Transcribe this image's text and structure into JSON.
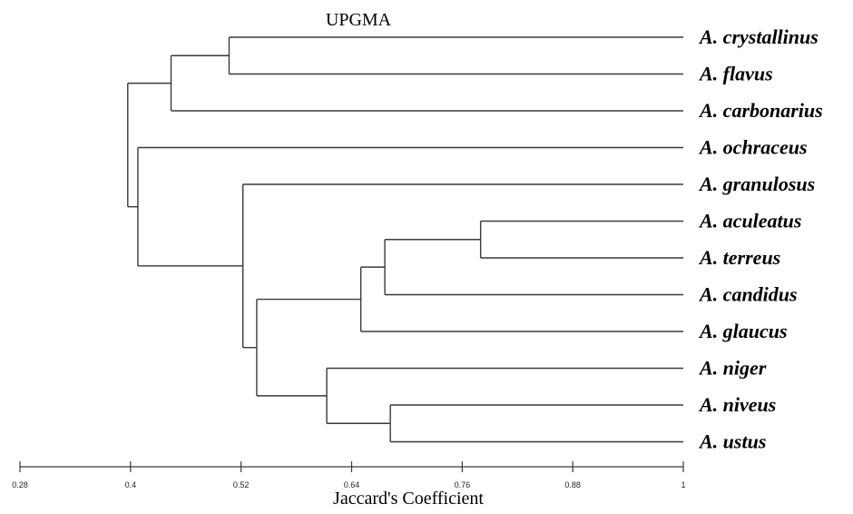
{
  "title": "UPGMA",
  "x_axis_label": "Jaccard's Coefficient",
  "axis": {
    "ticks": [
      0.28,
      0.4,
      0.52,
      0.64,
      0.76,
      0.88,
      1
    ],
    "tick_labels": [
      "0.28",
      "0.4",
      "0.52",
      "0.64",
      "0.76",
      "0.88",
      "1"
    ],
    "min": 0.28,
    "max": 1
  },
  "leaves": [
    "A. crystallinus",
    "A. flavus",
    "A. carbonarius",
    "A. ochraceus",
    "A. granulosus",
    "A. aculeatus",
    "A. terreus",
    "A. candidus",
    "A. glaucus",
    "A. niger",
    "A. niveus",
    "A. ustus"
  ],
  "tree": {
    "sim": 0.397,
    "children": [
      {
        "sim": 0.444,
        "children": [
          {
            "sim": 0.507,
            "children": [
              {
                "leaf": 0
              },
              {
                "leaf": 1
              }
            ]
          },
          {
            "leaf": 2
          }
        ]
      },
      {
        "sim": 0.408,
        "children": [
          {
            "leaf": 3
          },
          {
            "sim": 0.522,
            "children": [
              {
                "leaf": 4
              },
              {
                "sim": 0.537,
                "children": [
                  {
                    "sim": 0.65,
                    "children": [
                      {
                        "sim": 0.676,
                        "children": [
                          {
                            "sim": 0.78,
                            "children": [
                              {
                                "leaf": 5
                              },
                              {
                                "leaf": 6
                              }
                            ]
                          },
                          {
                            "leaf": 7
                          }
                        ]
                      },
                      {
                        "leaf": 8
                      }
                    ]
                  },
                  {
                    "sim": 0.613,
                    "children": [
                      {
                        "leaf": 9
                      },
                      {
                        "sim": 0.682,
                        "children": [
                          {
                            "leaf": 10
                          },
                          {
                            "leaf": 11
                          }
                        ]
                      }
                    ]
                  }
                ]
              }
            ]
          }
        ]
      }
    ]
  }
}
